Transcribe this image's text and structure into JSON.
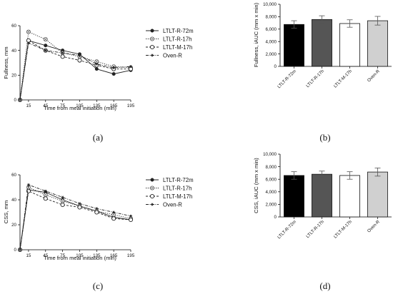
{
  "colors": {
    "line": "#222222",
    "bar_fills": [
      "#000000",
      "#555555",
      "#ffffff",
      "#d0d0d0"
    ],
    "bar_stroke": "#111111"
  },
  "chart_data": [
    {
      "panel": "(a)",
      "type": "line",
      "xlabel": "Time from meal initiation (min)",
      "ylabel": "Fullness, mm",
      "xlim": [
        0,
        195
      ],
      "ylim": [
        0,
        60
      ],
      "xticks": [
        15,
        45,
        75,
        105,
        135,
        165,
        195
      ],
      "yticks": [
        0,
        20,
        40,
        60
      ],
      "legend_position": "right",
      "x": [
        0,
        15,
        45,
        75,
        105,
        135,
        165,
        195
      ],
      "series": [
        {
          "name": "LTLT-R-72m",
          "marker": "filled-circle",
          "dash": "solid",
          "values": [
            0,
            48,
            44,
            40,
            37,
            25,
            21,
            24
          ]
        },
        {
          "name": "LTLT-R-17h",
          "marker": "crossed-circle",
          "dash": "dotted",
          "values": [
            0,
            55,
            49,
            38,
            35,
            31,
            27,
            26
          ]
        },
        {
          "name": "LTLT-M-17h",
          "marker": "open-circle",
          "dash": "dashed",
          "values": [
            0,
            48,
            40,
            35,
            32,
            28,
            25,
            25
          ]
        },
        {
          "name": "Oven-R",
          "marker": "star",
          "dash": "dashdot",
          "values": [
            0,
            46,
            40,
            38,
            36,
            29,
            26,
            27
          ]
        }
      ]
    },
    {
      "panel": "(b)",
      "type": "bar",
      "ylabel": "Fullness, iAUC (mm x min)",
      "ylim": [
        0,
        10000
      ],
      "yticks": [
        "0",
        "2,000",
        "4,000",
        "6,000",
        "8,000",
        "10,000"
      ],
      "categories": [
        "LTLT-R-72m",
        "LTLT-R-17h",
        "LTLT-M-17h",
        "Oven-R"
      ],
      "values": [
        6750,
        7550,
        6900,
        7350
      ],
      "errors": [
        600,
        600,
        600,
        700
      ]
    },
    {
      "panel": "(c)",
      "type": "line",
      "xlabel": "Time from meal initiation (min)",
      "ylabel": "CSS, mm",
      "xlim": [
        0,
        195
      ],
      "ylim": [
        0,
        60
      ],
      "xticks": [
        15,
        45,
        75,
        105,
        135,
        165,
        195
      ],
      "yticks": [
        0,
        20,
        40,
        60
      ],
      "legend_position": "right",
      "x": [
        0,
        15,
        45,
        75,
        105,
        135,
        165,
        195
      ],
      "series": [
        {
          "name": "LTLT-R-72m",
          "marker": "filled-circle",
          "dash": "solid",
          "values": [
            0,
            48,
            46,
            40,
            35,
            31,
            26,
            24
          ]
        },
        {
          "name": "LTLT-R-17h",
          "marker": "crossed-circle",
          "dash": "dotted",
          "values": [
            0,
            50,
            44,
            39,
            35,
            31,
            28,
            25
          ]
        },
        {
          "name": "LTLT-M-17h",
          "marker": "open-circle",
          "dash": "dashed",
          "values": [
            0,
            47,
            41,
            36,
            34,
            30,
            25,
            24
          ]
        },
        {
          "name": "Oven-R",
          "marker": "star",
          "dash": "dashdot",
          "values": [
            0,
            52,
            47,
            42,
            37,
            33,
            30,
            27
          ]
        }
      ]
    },
    {
      "panel": "(d)",
      "type": "bar",
      "ylabel": "CSS, iAUC (mm x min)",
      "ylim": [
        0,
        10000
      ],
      "yticks": [
        "0",
        "2,000",
        "4,000",
        "6,000",
        "8,000",
        "10,000"
      ],
      "categories": [
        "LTLT-R-72m",
        "LTLT-R-17h",
        "LTLT-M-17h",
        "Oven-R"
      ],
      "values": [
        6600,
        6800,
        6600,
        7150
      ],
      "errors": [
        600,
        500,
        600,
        650
      ]
    }
  ]
}
